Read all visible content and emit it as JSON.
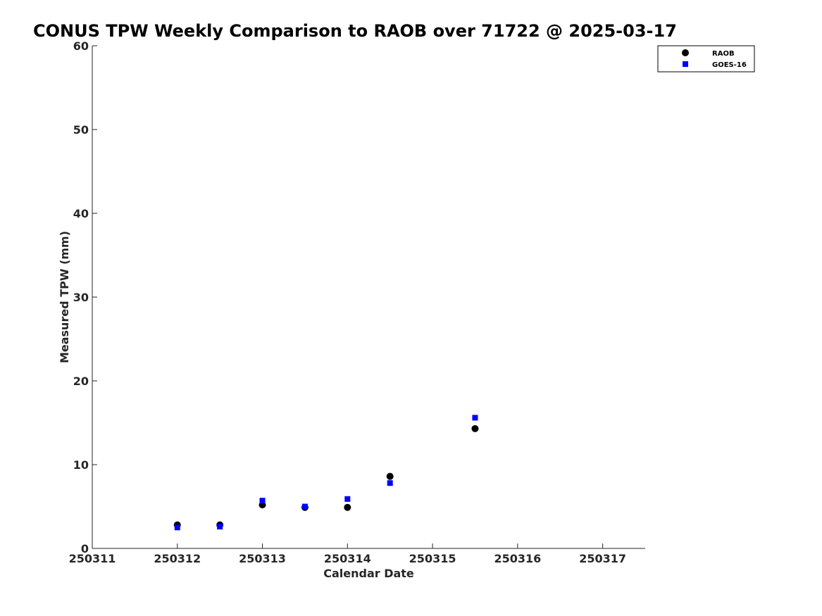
{
  "chart_data": {
    "type": "scatter",
    "title": "CONUS TPW Weekly Comparison to RAOB over 71722 @ 2025-03-17",
    "xlabel": "Calendar Date",
    "ylabel": "Measured TPW (mm)",
    "xlim": [
      250311,
      250317.5
    ],
    "ylim": [
      0,
      60
    ],
    "xticks": [
      250311,
      250312,
      250313,
      250314,
      250315,
      250316,
      250317
    ],
    "xtick_labels": [
      "250311",
      "250312",
      "250313",
      "250314",
      "250315",
      "250316",
      "250317"
    ],
    "yticks": [
      0,
      10,
      20,
      30,
      40,
      50,
      60
    ],
    "ytick_labels": [
      "0",
      "10",
      "20",
      "30",
      "40",
      "50",
      "60"
    ],
    "grid": false,
    "legend_position": "top-right",
    "series": [
      {
        "name": "RAOB",
        "marker": "circle",
        "color": "#000000",
        "x": [
          250312.0,
          250312.5,
          250313.0,
          250313.5,
          250314.0,
          250314.5,
          250315.5
        ],
        "y": [
          2.8,
          2.8,
          5.2,
          4.9,
          4.9,
          8.6,
          14.3
        ]
      },
      {
        "name": "GOES-16",
        "marker": "square",
        "color": "#0000ff",
        "x": [
          250312.0,
          250312.5,
          250313.0,
          250313.5,
          250314.0,
          250314.5,
          250315.5
        ],
        "y": [
          2.5,
          2.6,
          5.7,
          5.0,
          5.9,
          7.8,
          15.6
        ]
      }
    ]
  }
}
